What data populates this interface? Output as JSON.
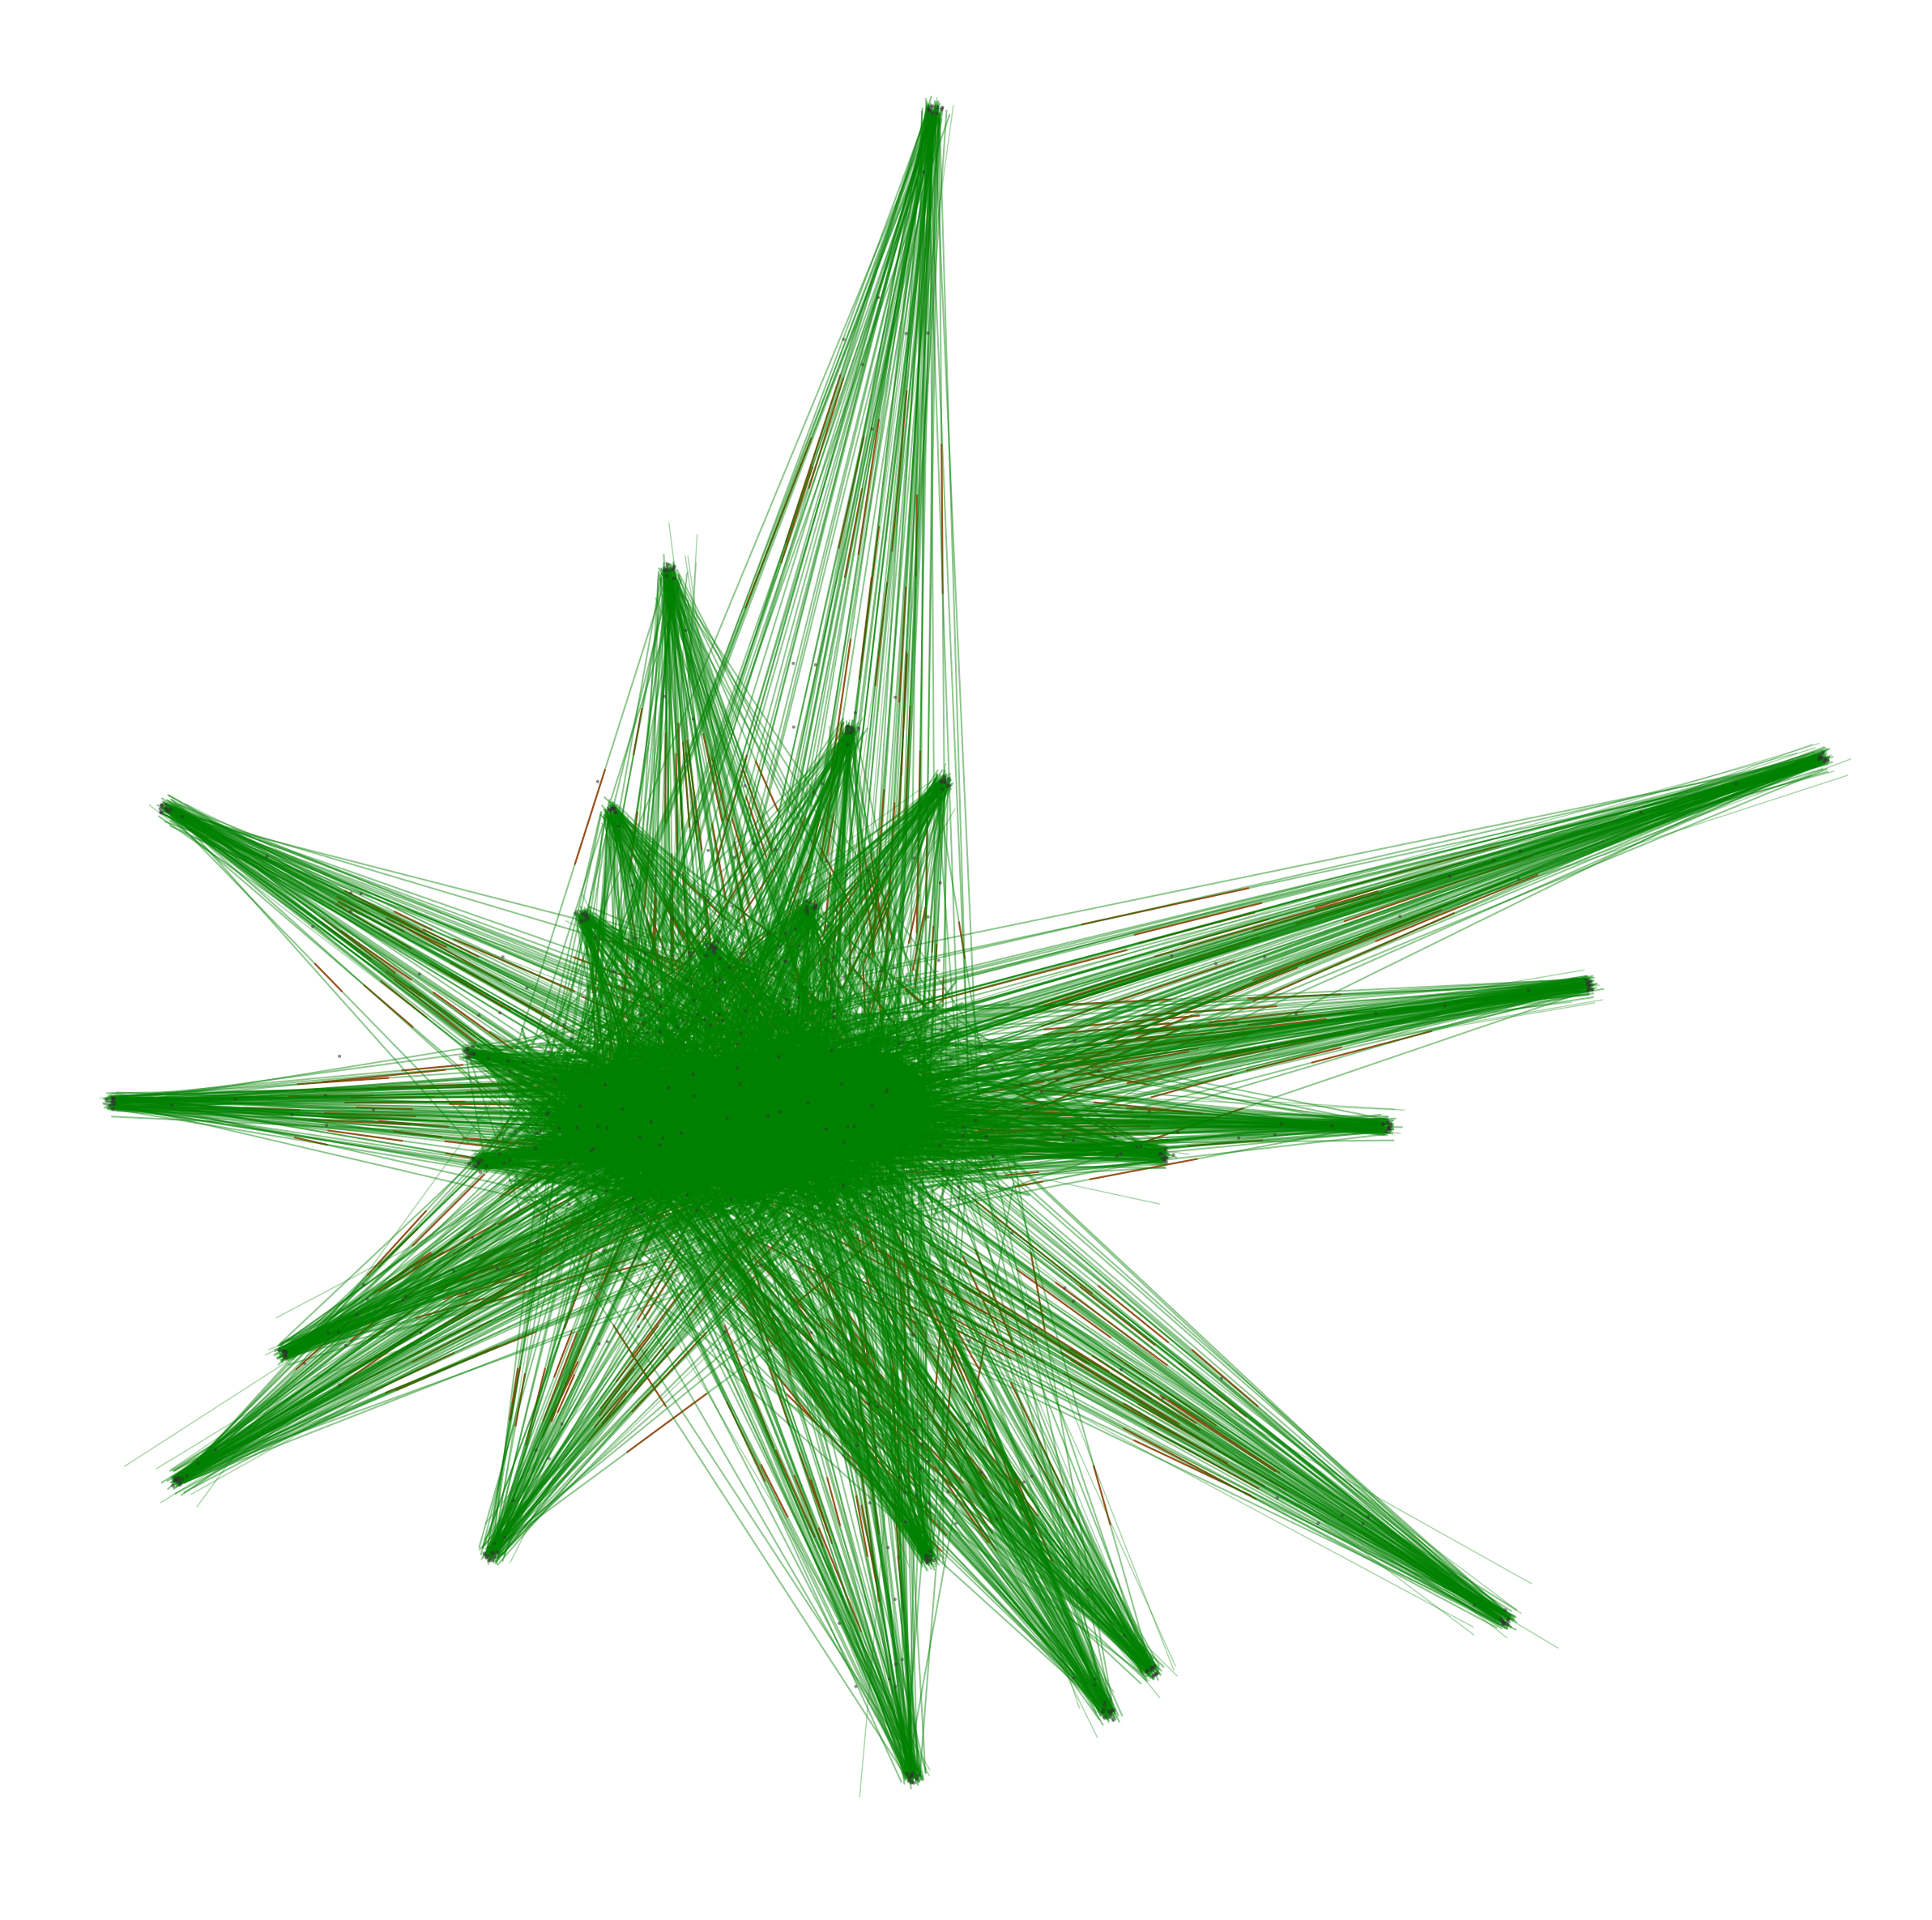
{
  "figure": {
    "type": "network-graph",
    "layout": "force-directed",
    "background": "#ffffff",
    "edge_colors": {
      "primary": "#008000",
      "secondary": "#ff0000"
    },
    "node_color": "#333333",
    "axes_visible": false,
    "title": "",
    "legend": "none"
  }
}
